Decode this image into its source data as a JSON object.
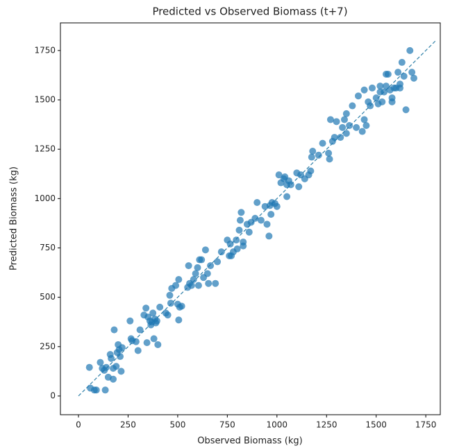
{
  "chart_data": {
    "type": "scatter",
    "title": "Predicted vs Observed Biomass (t+7)",
    "xlabel": "Observed Biomass (kg)",
    "ylabel": "Predicted Biomass (kg)",
    "xlim": [
      -91,
      1823
    ],
    "ylim": [
      -95,
      1890
    ],
    "xticks": [
      0,
      250,
      500,
      750,
      1000,
      1250,
      1500,
      1750
    ],
    "yticks": [
      0,
      250,
      500,
      750,
      1000,
      1250,
      1500,
      1750
    ],
    "color": "#1f77b4",
    "reference_line": {
      "x": [
        0,
        1800
      ],
      "y": [
        0,
        1800
      ],
      "color": "#2e7fa8"
    },
    "x": [
      55,
      60,
      80,
      90,
      110,
      120,
      130,
      135,
      140,
      150,
      160,
      165,
      175,
      175,
      180,
      190,
      195,
      200,
      205,
      210,
      215,
      220,
      260,
      265,
      270,
      290,
      300,
      310,
      330,
      340,
      345,
      350,
      360,
      365,
      370,
      375,
      380,
      385,
      390,
      395,
      400,
      410,
      440,
      450,
      460,
      465,
      470,
      490,
      500,
      505,
      505,
      510,
      520,
      550,
      555,
      560,
      570,
      580,
      590,
      600,
      605,
      610,
      620,
      630,
      640,
      650,
      655,
      665,
      690,
      700,
      720,
      750,
      760,
      765,
      770,
      780,
      795,
      800,
      810,
      815,
      820,
      830,
      830,
      850,
      860,
      870,
      890,
      900,
      920,
      940,
      950,
      960,
      965,
      970,
      975,
      990,
      1000,
      1010,
      1020,
      1035,
      1040,
      1050,
      1050,
      1060,
      1070,
      1100,
      1110,
      1120,
      1140,
      1160,
      1170,
      1175,
      1180,
      1210,
      1230,
      1260,
      1265,
      1270,
      1280,
      1290,
      1300,
      1320,
      1330,
      1340,
      1350,
      1350,
      1365,
      1380,
      1400,
      1410,
      1430,
      1440,
      1440,
      1450,
      1460,
      1470,
      1480,
      1500,
      1510,
      1520,
      1520,
      1530,
      1540,
      1550,
      1550,
      1560,
      1570,
      1580,
      1580,
      1590,
      1600,
      1610,
      1620,
      1620,
      1630,
      1640,
      1650,
      1670,
      1680,
      1690
    ],
    "y": [
      145,
      40,
      30,
      30,
      170,
      140,
      130,
      30,
      145,
      95,
      210,
      190,
      140,
      85,
      335,
      150,
      220,
      260,
      235,
      200,
      125,
      245,
      380,
      290,
      280,
      275,
      230,
      335,
      410,
      445,
      270,
      400,
      380,
      360,
      375,
      420,
      290,
      390,
      370,
      380,
      260,
      450,
      420,
      410,
      510,
      470,
      545,
      560,
      465,
      590,
      385,
      450,
      455,
      550,
      660,
      570,
      560,
      590,
      620,
      650,
      560,
      690,
      690,
      600,
      740,
      620,
      570,
      660,
      570,
      680,
      730,
      790,
      710,
      770,
      710,
      730,
      790,
      745,
      840,
      890,
      930,
      760,
      780,
      870,
      830,
      880,
      900,
      980,
      890,
      960,
      870,
      810,
      965,
      920,
      980,
      975,
      960,
      1120,
      1080,
      1100,
      1110,
      1070,
      1010,
      1090,
      1070,
      1130,
      1060,
      1120,
      1100,
      1120,
      1140,
      1210,
      1240,
      1220,
      1280,
      1230,
      1200,
      1400,
      1290,
      1310,
      1390,
      1310,
      1360,
      1400,
      1330,
      1430,
      1370,
      1470,
      1360,
      1520,
      1340,
      1550,
      1400,
      1370,
      1490,
      1470,
      1560,
      1510,
      1480,
      1570,
      1540,
      1490,
      1540,
      1570,
      1630,
      1630,
      1550,
      1490,
      1510,
      1560,
      1560,
      1640,
      1580,
      1560,
      1690,
      1620,
      1450,
      1750,
      1640,
      1610
    ]
  }
}
